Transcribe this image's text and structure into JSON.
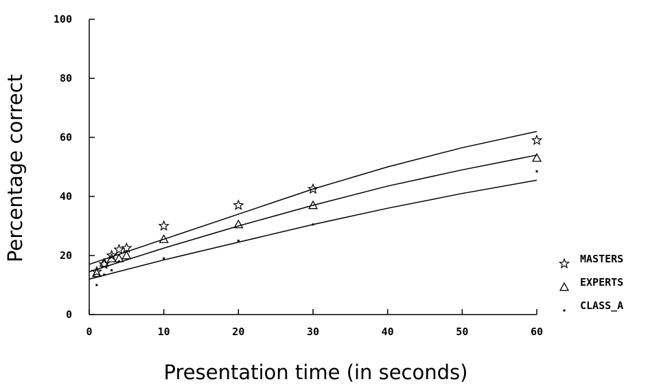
{
  "chart_data": {
    "type": "scatter",
    "title": "",
    "xlabel": "Presentation time (in seconds)",
    "ylabel": "Percentage correct",
    "xlim": [
      0,
      60
    ],
    "ylim": [
      0,
      100
    ],
    "xticks": [
      0,
      10,
      20,
      30,
      40,
      50,
      60
    ],
    "yticks": [
      0,
      20,
      40,
      60,
      80,
      100
    ],
    "grid": false,
    "legend_position": "right",
    "series": [
      {
        "name": "MASTERS",
        "marker": "star",
        "points": [
          [
            1,
            14.5
          ],
          [
            2,
            17
          ],
          [
            3,
            20
          ],
          [
            4,
            22
          ],
          [
            5,
            22.5
          ],
          [
            10,
            30
          ],
          [
            20,
            37
          ],
          [
            30,
            42.5
          ],
          [
            60,
            59
          ]
        ],
        "fit_line": [
          [
            0,
            17
          ],
          [
            10,
            25.5
          ],
          [
            20,
            34
          ],
          [
            30,
            42.5
          ],
          [
            40,
            50
          ],
          [
            50,
            56.5
          ],
          [
            60,
            62
          ]
        ]
      },
      {
        "name": "EXPERTS",
        "marker": "triangle",
        "points": [
          [
            1,
            14
          ],
          [
            2,
            17.5
          ],
          [
            3,
            19
          ],
          [
            4,
            19
          ],
          [
            5,
            20
          ],
          [
            10,
            25.5
          ],
          [
            20,
            30.5
          ],
          [
            30,
            37
          ],
          [
            60,
            53
          ]
        ],
        "fit_line": [
          [
            0,
            14.5
          ],
          [
            10,
            22.5
          ],
          [
            20,
            30
          ],
          [
            30,
            37
          ],
          [
            40,
            43.5
          ],
          [
            50,
            49
          ],
          [
            60,
            54
          ]
        ]
      },
      {
        "name": "CLASS_A",
        "marker": "dot",
        "points": [
          [
            1,
            10
          ],
          [
            2,
            13.5
          ],
          [
            3,
            15
          ],
          [
            4,
            18
          ],
          [
            10,
            19
          ],
          [
            20,
            25
          ],
          [
            30,
            30.5
          ],
          [
            60,
            48.5
          ]
        ],
        "fit_line": [
          [
            0,
            12
          ],
          [
            10,
            18.5
          ],
          [
            20,
            24.5
          ],
          [
            30,
            30.5
          ],
          [
            40,
            36
          ],
          [
            50,
            41
          ],
          [
            60,
            45.5
          ]
        ]
      }
    ]
  }
}
